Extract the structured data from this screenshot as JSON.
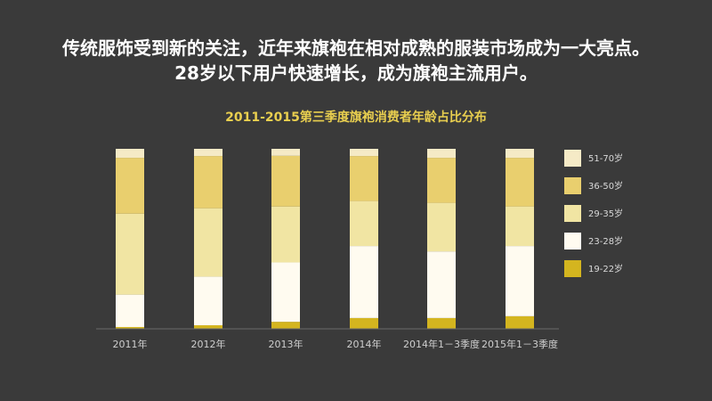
{
  "headline": {
    "line1": "传统服饰受到新的关注，近年来旗袍在相对成熟的服装市场成为一大亮点。",
    "line2": "28岁以下用户快速增长，成为旗袍主流用户。"
  },
  "chart_data": {
    "type": "bar",
    "stacked": true,
    "normalized": true,
    "title": "2011-2015第三季度旗袍消费者年龄占比分布",
    "categories": [
      "2011年",
      "2012年",
      "2013年",
      "2014年",
      "2014年1－3季度",
      "2015年1－3季度"
    ],
    "series": [
      {
        "name": "19-22岁",
        "color": "#d4b51f",
        "values": [
          1,
          2,
          4,
          6,
          6,
          7
        ]
      },
      {
        "name": "23-28岁",
        "color": "#fffbf0",
        "values": [
          18,
          27,
          34,
          40,
          37,
          39
        ]
      },
      {
        "name": "29-35岁",
        "color": "#f1e5a3",
        "values": [
          45,
          38,
          32,
          25,
          27,
          22
        ]
      },
      {
        "name": "36-50岁",
        "color": "#e9cf6e",
        "values": [
          31,
          29,
          29,
          25,
          25,
          27
        ]
      },
      {
        "name": "51-70岁",
        "color": "#f5eac6",
        "values": [
          5,
          4,
          4,
          4,
          5,
          5
        ]
      }
    ],
    "ylim": [
      0,
      100
    ],
    "legend_position": "right"
  }
}
